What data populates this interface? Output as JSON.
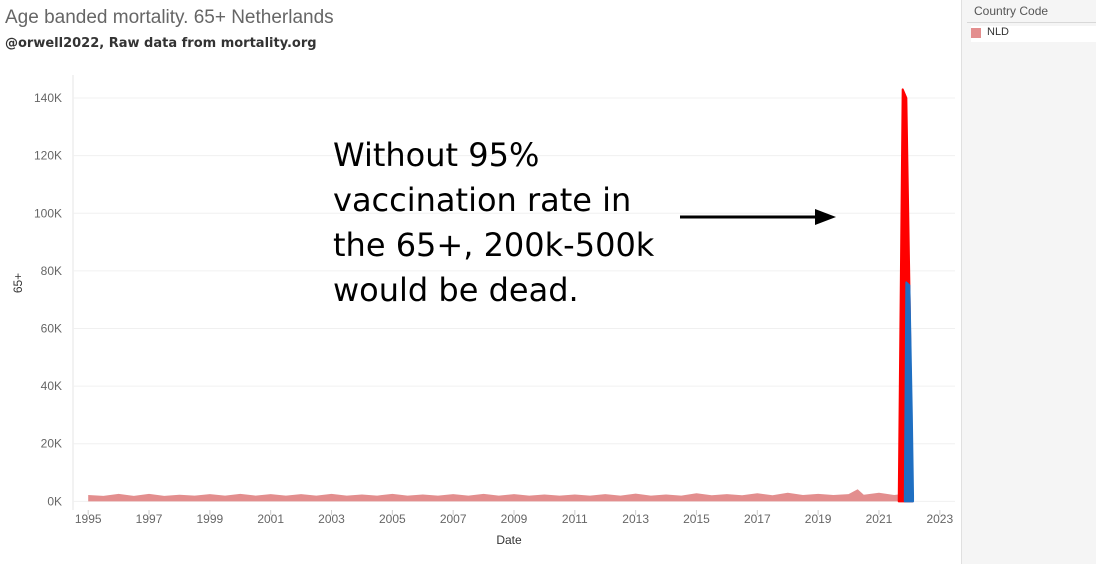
{
  "chart_data": {
    "type": "area",
    "title": "Age banded mortality. 65+ Netherlands",
    "subtitle": "@orwell2022,  Raw data from mortality.org",
    "xlabel": "Date",
    "ylabel": "65+",
    "xlim": [
      1994.5,
      2023.5
    ],
    "ylim": [
      -3000,
      148000
    ],
    "x_ticks": [
      1995,
      1997,
      1999,
      2001,
      2003,
      2005,
      2007,
      2009,
      2011,
      2013,
      2015,
      2017,
      2019,
      2021,
      2023
    ],
    "y_ticks": [
      0,
      20000,
      40000,
      60000,
      80000,
      100000,
      120000,
      140000
    ],
    "y_tick_labels": [
      "0K",
      "20K",
      "40K",
      "60K",
      "80K",
      "100K",
      "120K",
      "140K"
    ],
    "legend": {
      "title": "Country Code",
      "entries": [
        "NLD"
      ],
      "placement": "top-right"
    },
    "grid": true,
    "series": [
      {
        "name": "NLD",
        "color": "#e38e8e",
        "x": [
          1995.0,
          1995.5,
          1996.0,
          1996.5,
          1997.0,
          1997.5,
          1998.0,
          1998.5,
          1999.0,
          1999.5,
          2000.0,
          2000.5,
          2001.0,
          2001.5,
          2002.0,
          2002.5,
          2003.0,
          2003.5,
          2004.0,
          2004.5,
          2005.0,
          2005.5,
          2006.0,
          2006.5,
          2007.0,
          2007.5,
          2008.0,
          2008.5,
          2009.0,
          2009.5,
          2010.0,
          2010.5,
          2011.0,
          2011.5,
          2012.0,
          2012.5,
          2013.0,
          2013.5,
          2014.0,
          2014.5,
          2015.0,
          2015.5,
          2016.0,
          2016.5,
          2017.0,
          2017.5,
          2018.0,
          2018.5,
          2019.0,
          2019.5,
          2020.0,
          2020.3,
          2020.5,
          2021.0,
          2021.5,
          2021.8
        ],
        "values": [
          2200,
          1900,
          2600,
          1900,
          2600,
          1900,
          2300,
          2000,
          2500,
          2000,
          2600,
          2000,
          2500,
          2000,
          2500,
          2000,
          2600,
          2000,
          2400,
          2000,
          2600,
          2000,
          2400,
          2000,
          2500,
          2000,
          2600,
          2000,
          2500,
          2000,
          2400,
          2000,
          2400,
          2000,
          2500,
          2000,
          2700,
          2000,
          2400,
          2000,
          2800,
          2100,
          2500,
          2100,
          2800,
          2100,
          3000,
          2200,
          2600,
          2200,
          2500,
          4200,
          2300,
          3000,
          2200,
          2600
        ]
      },
      {
        "name": "",
        "color": "#ff0000",
        "x": [
          2021.65,
          2021.78,
          2021.9,
          2022.0,
          2022.1
        ],
        "values": [
          500,
          143000,
          140000,
          75000,
          2000
        ]
      },
      {
        "name": "",
        "color": "#1f6fc2",
        "x": [
          2021.85,
          2021.9,
          2022.0,
          2022.08,
          2022.12
        ],
        "values": [
          1000,
          76000,
          75000,
          30000,
          2000
        ]
      }
    ],
    "annotations": [
      {
        "text": "Without 95% vaccination rate in the 65+, 200k-500k would be dead.",
        "arrow": "right"
      }
    ]
  }
}
